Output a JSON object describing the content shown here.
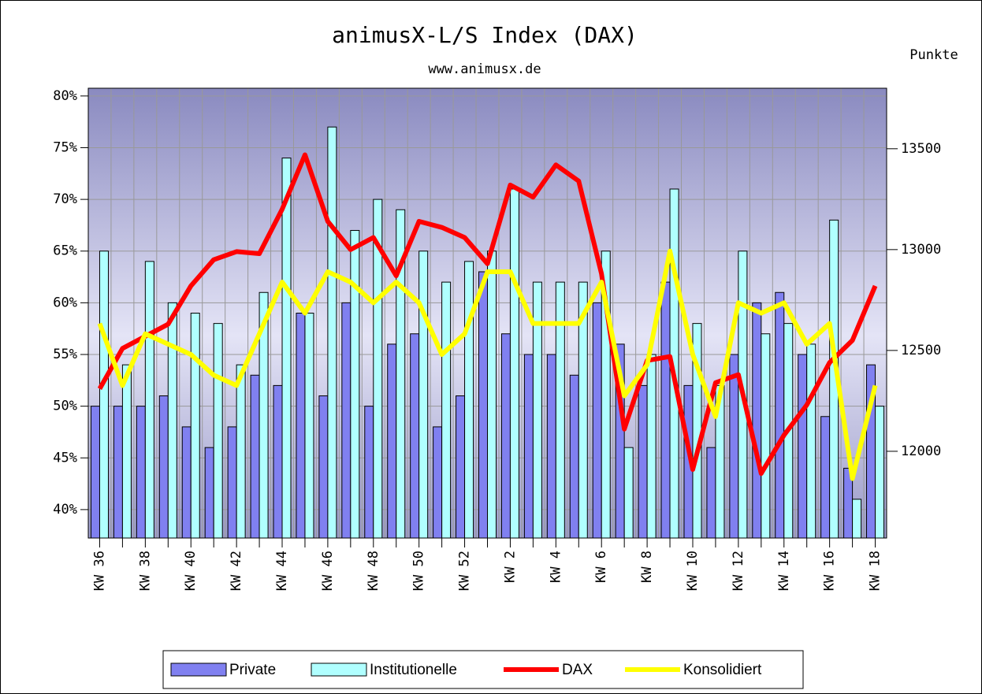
{
  "chart_data": {
    "type": "bar+line",
    "title": "animusX-L/S Index (DAX)",
    "subtitle": "www.animusx.de",
    "y2_label": "Punkte",
    "categories": [
      "KW 36",
      null,
      "KW 38",
      null,
      "KW 40",
      null,
      "KW 42",
      null,
      "KW 44",
      null,
      "KW 46",
      null,
      "KW 48",
      null,
      "KW 50",
      null,
      "KW 52",
      null,
      "KW 2",
      null,
      "KW 4",
      null,
      "KW 6",
      null,
      "KW 8",
      null,
      "KW 10",
      null,
      "KW 12",
      null,
      "KW 14",
      null,
      "KW 16",
      null,
      "KW 18"
    ],
    "ylim": [
      37.25,
      80.75
    ],
    "yticks": [
      {
        "value": 40,
        "label": "40%"
      },
      {
        "value": 45,
        "label": "45%"
      },
      {
        "value": 50,
        "label": "50%"
      },
      {
        "value": 55,
        "label": "55%"
      },
      {
        "value": 60,
        "label": "60%"
      },
      {
        "value": 65,
        "label": "65%"
      },
      {
        "value": 70,
        "label": "70%"
      },
      {
        "value": 75,
        "label": "75%"
      },
      {
        "value": 80,
        "label": "80%"
      }
    ],
    "y2lim": [
      11570,
      13800
    ],
    "y2ticks": [
      12000,
      12500,
      13000,
      13500
    ],
    "grid": true,
    "legend": "bottom",
    "series": [
      {
        "name": "Private",
        "kind": "bar",
        "color": "#8080f0",
        "values": [
          50,
          50,
          50,
          51,
          48,
          46,
          48,
          53,
          52,
          59,
          51,
          60,
          50,
          56,
          57,
          48,
          51,
          63,
          57,
          55,
          55,
          53,
          60,
          56,
          52,
          62,
          52,
          46,
          55,
          60,
          61,
          55,
          49,
          44,
          54
        ]
      },
      {
        "name": "Institutionelle",
        "kind": "bar",
        "color": "#b0ffff",
        "values": [
          65,
          54,
          64,
          60,
          59,
          58,
          54,
          61,
          74,
          59,
          77,
          67,
          70,
          69,
          65,
          62,
          64,
          65,
          71,
          62,
          62,
          62,
          65,
          46,
          55,
          71,
          58,
          52,
          65,
          57,
          58,
          56,
          68,
          41,
          50
        ]
      },
      {
        "name": "DAX",
        "kind": "line",
        "axis": "y2",
        "color": "#ff0000",
        "values": [
          12310,
          12510,
          12570,
          12630,
          12820,
          12950,
          12990,
          12980,
          13200,
          13470,
          13140,
          13000,
          13060,
          12870,
          13140,
          13110,
          13060,
          12930,
          13320,
          13260,
          13420,
          13340,
          12880,
          12110,
          12450,
          12470,
          11910,
          12340,
          12380,
          11890,
          12080,
          12230,
          12440,
          12550,
          12820
        ]
      },
      {
        "name": "Konsolidiert",
        "kind": "line",
        "color": "#ffff00",
        "values": [
          58,
          52,
          57,
          56,
          55,
          53,
          52,
          57,
          62,
          59,
          63,
          62,
          60,
          62,
          60,
          55,
          57,
          63,
          63,
          58,
          58,
          58,
          62,
          51,
          54,
          65,
          55,
          49,
          60,
          59,
          60,
          56,
          58,
          43,
          52
        ]
      }
    ]
  }
}
